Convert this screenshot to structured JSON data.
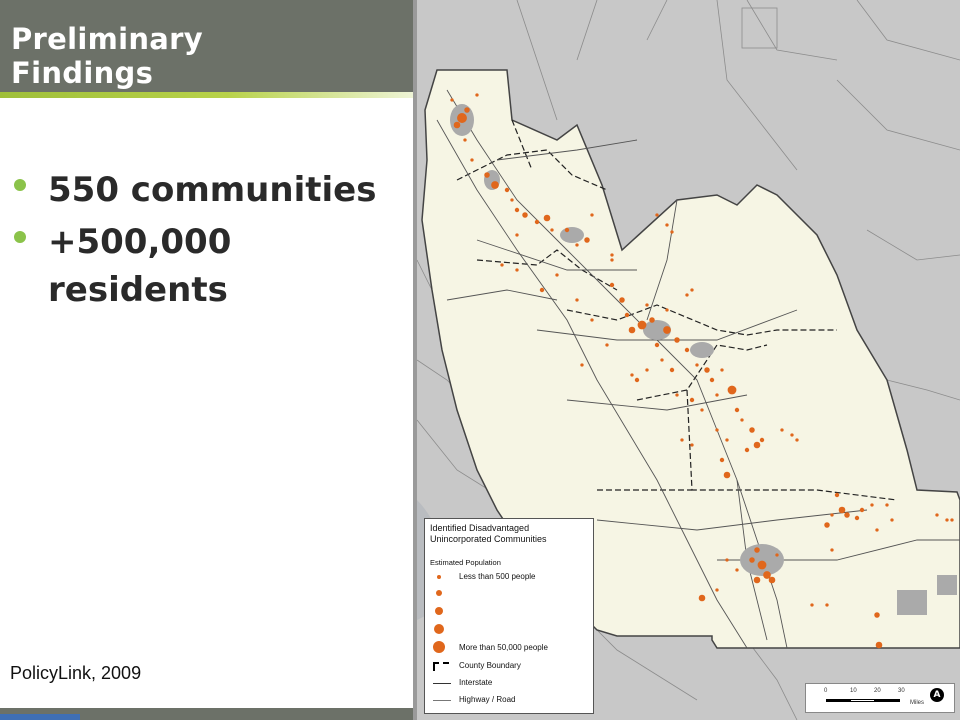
{
  "slide": {
    "title_line1": "Preliminary",
    "title_line2": "Findings",
    "bullets": [
      {
        "text": "550 communities"
      },
      {
        "text": "+500,000"
      },
      {
        "text": "residents"
      }
    ],
    "source": "PolicyLink, 2009"
  },
  "map": {
    "colors": {
      "background": "#c8c8c8",
      "region": "#f6f5e4",
      "community": "#e0671c",
      "urban": "#aaaaaa",
      "accent": "#8bc34a"
    },
    "legend": {
      "title": "Identified Disadvantaged Unincorporated Communities",
      "subtitle": "Estimated Population",
      "size_min_label": "Less than 500 people",
      "size_max_label": "More than 50,000 people",
      "county_boundary": "County Boundary",
      "interstate": "Interstate",
      "highway": "Highway / Road"
    },
    "scale": {
      "ticks": [
        "0",
        "10",
        "20",
        "30"
      ],
      "unit": "Miles"
    },
    "north_label": "A"
  }
}
